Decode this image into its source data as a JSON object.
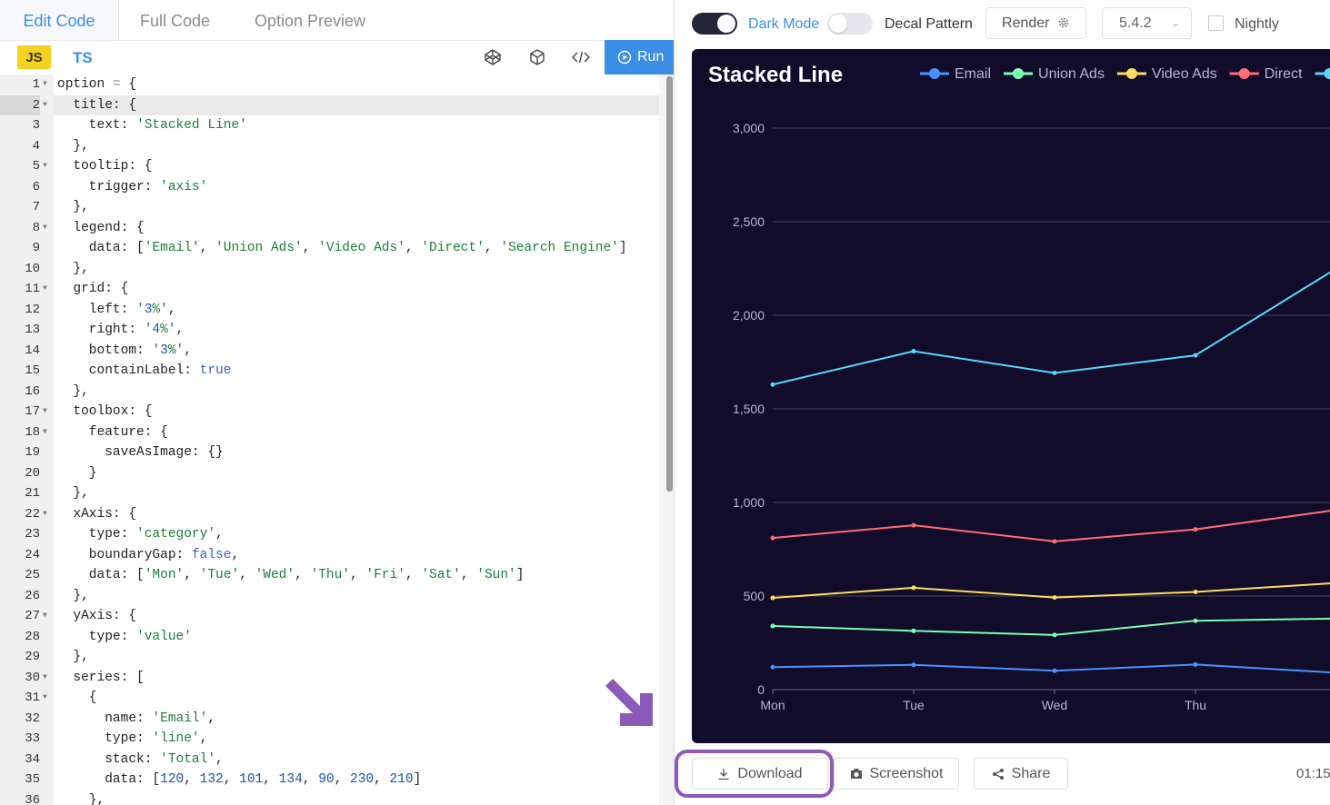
{
  "tabs": {
    "edit": "Edit Code",
    "full": "Full Code",
    "preview": "Option Preview"
  },
  "lang": {
    "js": "JS",
    "ts": "TS"
  },
  "run_label": "Run",
  "code": {
    "lines": [
      {
        "n": "1",
        "text": "option = {",
        "fold": true
      },
      {
        "n": "2",
        "text": "  title: {",
        "fold": true,
        "highlight": true
      },
      {
        "n": "3",
        "text": "    text: 'Stacked Line'"
      },
      {
        "n": "4",
        "text": "  },"
      },
      {
        "n": "5",
        "text": "  tooltip: {",
        "fold": true
      },
      {
        "n": "6",
        "text": "    trigger: 'axis'"
      },
      {
        "n": "7",
        "text": "  },"
      },
      {
        "n": "8",
        "text": "  legend: {",
        "fold": true
      },
      {
        "n": "9",
        "text": "    data: ['Email', 'Union Ads', 'Video Ads', 'Direct', 'Search Engine']"
      },
      {
        "n": "10",
        "text": "  },"
      },
      {
        "n": "11",
        "text": "  grid: {",
        "fold": true
      },
      {
        "n": "12",
        "text": "    left: '3%',"
      },
      {
        "n": "13",
        "text": "    right: '4%',"
      },
      {
        "n": "14",
        "text": "    bottom: '3%',"
      },
      {
        "n": "15",
        "text": "    containLabel: true"
      },
      {
        "n": "16",
        "text": "  },"
      },
      {
        "n": "17",
        "text": "  toolbox: {",
        "fold": true
      },
      {
        "n": "18",
        "text": "    feature: {",
        "fold": true
      },
      {
        "n": "19",
        "text": "      saveAsImage: {}"
      },
      {
        "n": "20",
        "text": "    }"
      },
      {
        "n": "21",
        "text": "  },"
      },
      {
        "n": "22",
        "text": "  xAxis: {",
        "fold": true
      },
      {
        "n": "23",
        "text": "    type: 'category',"
      },
      {
        "n": "24",
        "text": "    boundaryGap: false,"
      },
      {
        "n": "25",
        "text": "    data: ['Mon', 'Tue', 'Wed', 'Thu', 'Fri', 'Sat', 'Sun']"
      },
      {
        "n": "26",
        "text": "  },"
      },
      {
        "n": "27",
        "text": "  yAxis: {",
        "fold": true
      },
      {
        "n": "28",
        "text": "    type: 'value'"
      },
      {
        "n": "29",
        "text": "  },"
      },
      {
        "n": "30",
        "text": "  series: [",
        "fold": true
      },
      {
        "n": "31",
        "text": "    {",
        "fold": true
      },
      {
        "n": "32",
        "text": "      name: 'Email',"
      },
      {
        "n": "33",
        "text": "      type: 'line',"
      },
      {
        "n": "34",
        "text": "      stack: 'Total',"
      },
      {
        "n": "35",
        "text": "      data: [120, 132, 101, 134, 90, 230, 210]"
      },
      {
        "n": "36",
        "text": "    },"
      }
    ]
  },
  "toolbar": {
    "dark_mode_label": "Dark Mode",
    "decal_label": "Decal Pattern",
    "render_label": "Render",
    "version": "5.4.2",
    "nightly_label": "Nightly"
  },
  "bottom": {
    "download_label": "Download",
    "screenshot_label": "Screenshot",
    "share_label": "Share",
    "time_text": "01:15"
  },
  "colors": {
    "chart_bg": "#100c2a",
    "accent": "#3a8ee6",
    "highlight_ring": "#8c5ab9"
  },
  "chart_data": {
    "type": "line",
    "title": "Stacked Line",
    "categories": [
      "Mon",
      "Tue",
      "Wed",
      "Thu"
    ],
    "y_ticks": [
      "0",
      "500",
      "1,000",
      "1,500",
      "2,000",
      "2,500",
      "3,000"
    ],
    "ylim": [
      0,
      3000
    ],
    "stacked": true,
    "grid": true,
    "legend_position": "top-right",
    "series": [
      {
        "name": "Email",
        "color": "#4992ff",
        "values": [
          120,
          132,
          101,
          134
        ]
      },
      {
        "name": "Union Ads",
        "color": "#7cffb2",
        "values": [
          340,
          314,
          292,
          368
        ]
      },
      {
        "name": "Video Ads",
        "color": "#fddd60",
        "values": [
          490,
          544,
          492,
          522
        ]
      },
      {
        "name": "Direct",
        "color": "#ff6e76",
        "values": [
          810,
          878,
          792,
          856
        ]
      },
      {
        "name": "Search Engine",
        "color": "#58d9f9",
        "values": [
          1630,
          1808,
          1692,
          1786
        ]
      }
    ]
  }
}
